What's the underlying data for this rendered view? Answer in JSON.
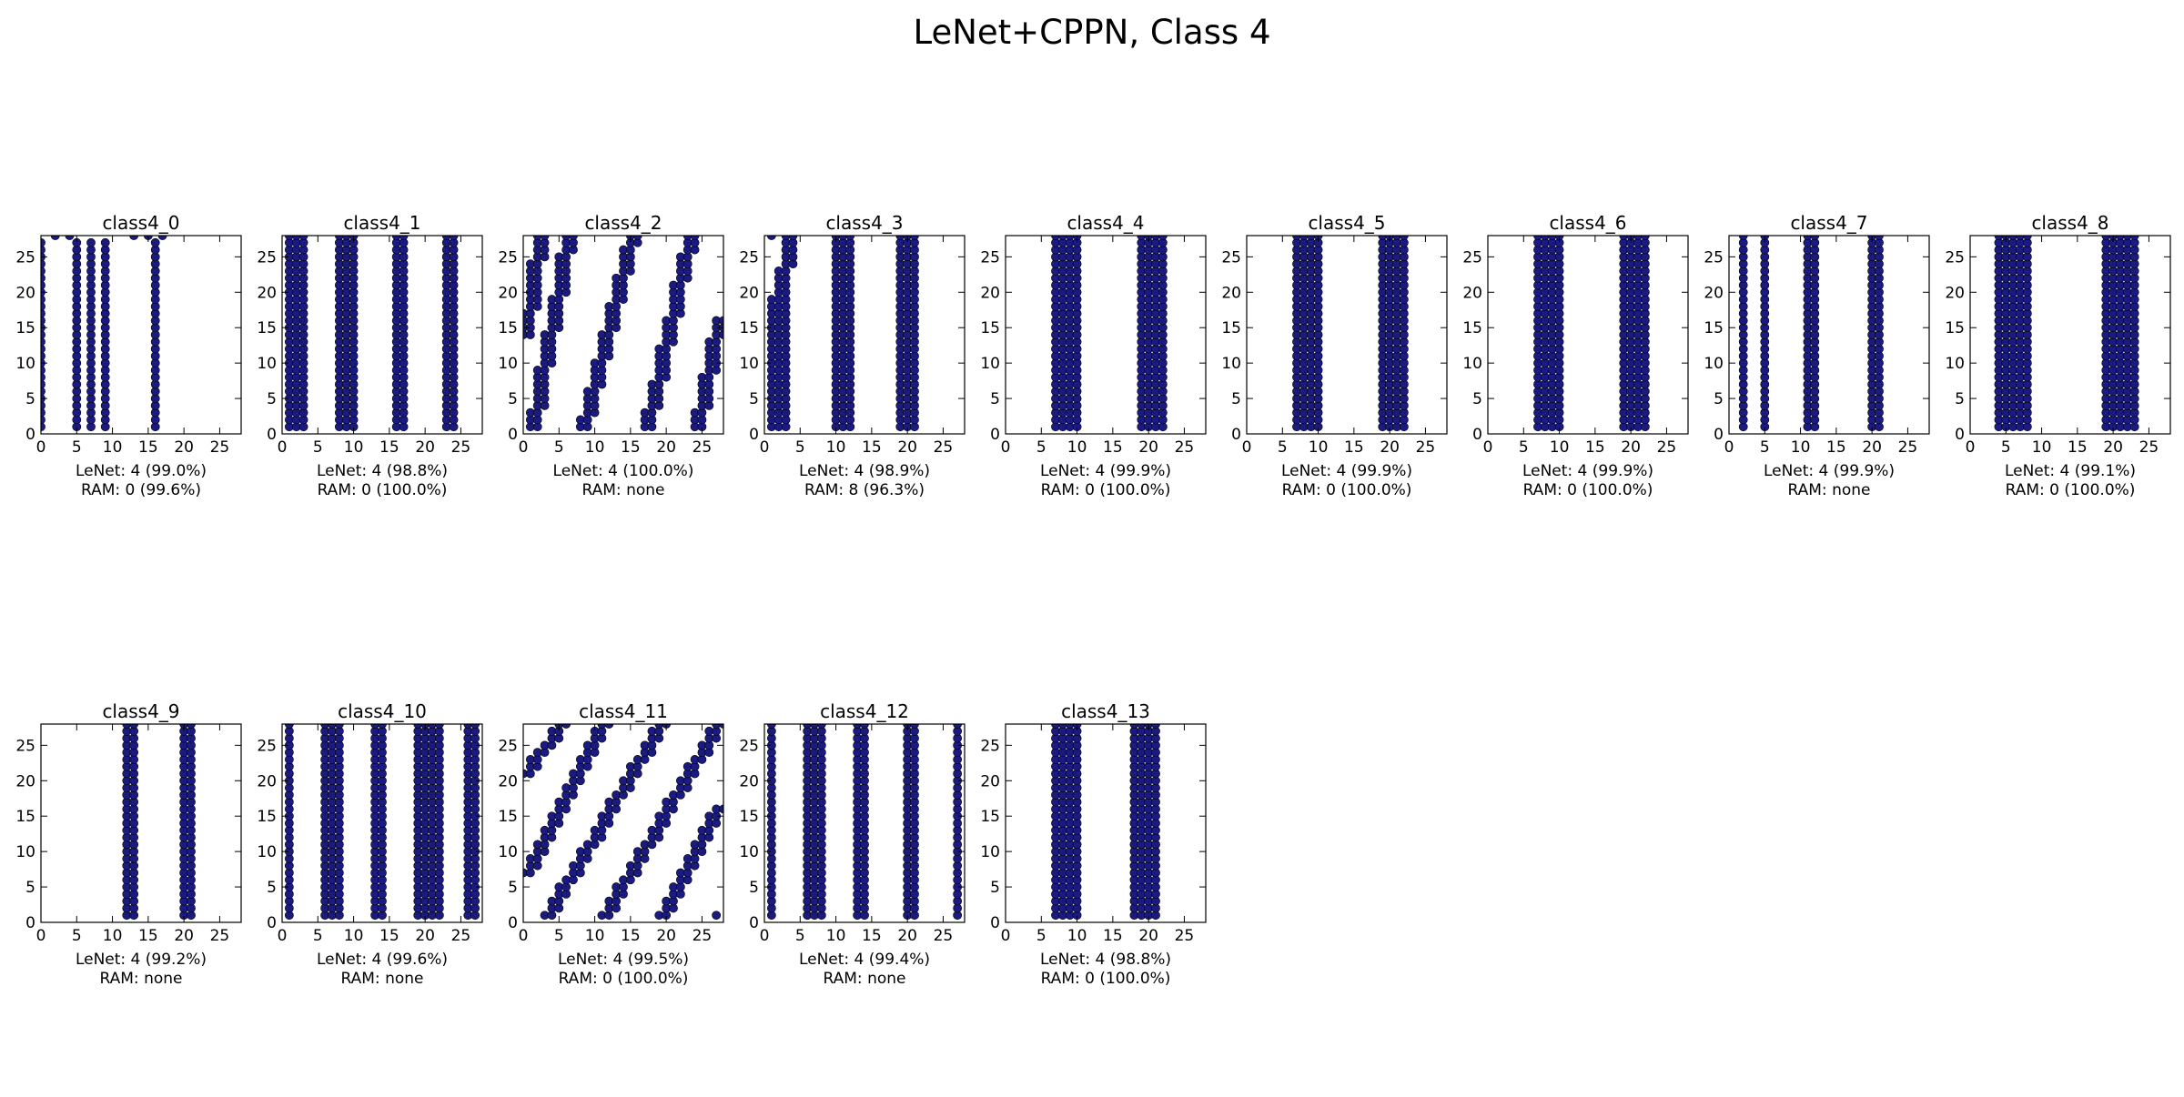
{
  "figure": {
    "title": "LeNet+CPPN, Class 4"
  },
  "chart_data": [
    {
      "type": "scatter",
      "title": "class4_0",
      "caption": [
        "LeNet: 4 (99.0%)",
        "RAM: 0 (99.6%)"
      ],
      "xlim": [
        0,
        28
      ],
      "ylim": [
        0,
        28
      ],
      "xticks": [
        0,
        5,
        10,
        15,
        20,
        25
      ],
      "yticks": [
        0,
        5,
        10,
        15,
        20,
        25
      ],
      "marker_color": "#1a1a80",
      "columns": [
        {
          "x": 0,
          "y0": 1,
          "y1": 27
        },
        {
          "x": 5,
          "y0": 1,
          "y1": 27
        },
        {
          "x": 7,
          "y0": 1,
          "y1": 27
        },
        {
          "x": 9,
          "y0": 1,
          "y1": 27
        },
        {
          "x": 16,
          "y0": 1,
          "y1": 27
        }
      ],
      "points": [
        [
          2,
          28
        ],
        [
          4,
          28
        ],
        [
          13,
          28
        ],
        [
          15,
          28
        ],
        [
          17,
          28
        ]
      ]
    },
    {
      "type": "scatter",
      "title": "class4_1",
      "caption": [
        "LeNet: 4 (98.8%)",
        "RAM: 0 (100.0%)"
      ],
      "xlim": [
        0,
        28
      ],
      "ylim": [
        0,
        28
      ],
      "xticks": [
        0,
        5,
        10,
        15,
        20,
        25
      ],
      "yticks": [
        0,
        5,
        10,
        15,
        20,
        25
      ],
      "marker_color": "#1a1a80",
      "columns": [
        {
          "x": 1,
          "y0": 1,
          "y1": 28
        },
        {
          "x": 2,
          "y0": 1,
          "y1": 28
        },
        {
          "x": 3,
          "y0": 1,
          "y1": 28
        },
        {
          "x": 8,
          "y0": 1,
          "y1": 28
        },
        {
          "x": 9,
          "y0": 1,
          "y1": 28
        },
        {
          "x": 10,
          "y0": 1,
          "y1": 28
        },
        {
          "x": 16,
          "y0": 1,
          "y1": 28
        },
        {
          "x": 17,
          "y0": 1,
          "y1": 28
        },
        {
          "x": 23,
          "y0": 1,
          "y1": 28
        },
        {
          "x": 24,
          "y0": 1,
          "y1": 28
        }
      ],
      "points": []
    },
    {
      "type": "scatter",
      "title": "class4_2",
      "caption": [
        "LeNet: 4 (100.0%)",
        "RAM: none"
      ],
      "xlim": [
        0,
        28
      ],
      "ylim": [
        0,
        28
      ],
      "xticks": [
        0,
        5,
        10,
        15,
        20,
        25
      ],
      "yticks": [
        0,
        5,
        10,
        15,
        20,
        25
      ],
      "marker_color": "#1a1a80",
      "columns": [],
      "stripes": [
        {
          "x0": 1,
          "x1": 6,
          "y0": 1,
          "y1": 28
        },
        {
          "x0": 8,
          "x1": 15,
          "y0": 1,
          "y1": 28
        },
        {
          "x0": 17,
          "x1": 23,
          "y0": 1,
          "y1": 28
        },
        {
          "x0": 24,
          "x1": 27,
          "y0": 1,
          "y1": 16
        },
        {
          "x0": 0,
          "x1": 2,
          "y0": 14,
          "y1": 28
        }
      ],
      "points": []
    },
    {
      "type": "scatter",
      "title": "class4_3",
      "caption": [
        "LeNet: 4 (98.9%)",
        "RAM: 8 (96.3%)"
      ],
      "xlim": [
        0,
        28
      ],
      "ylim": [
        0,
        28
      ],
      "xticks": [
        0,
        5,
        10,
        15,
        20,
        25
      ],
      "yticks": [
        0,
        5,
        10,
        15,
        20,
        25
      ],
      "marker_color": "#1a1a80",
      "columns": [
        {
          "x": 1,
          "y0": 1,
          "y1": 19
        },
        {
          "x": 2,
          "y0": 1,
          "y1": 23
        },
        {
          "x": 3,
          "y0": 1,
          "y1": 28
        },
        {
          "x": 4,
          "y0": 24,
          "y1": 28
        },
        {
          "x": 10,
          "y0": 1,
          "y1": 28
        },
        {
          "x": 11,
          "y0": 1,
          "y1": 28
        },
        {
          "x": 12,
          "y0": 1,
          "y1": 28
        },
        {
          "x": 19,
          "y0": 1,
          "y1": 28
        },
        {
          "x": 20,
          "y0": 1,
          "y1": 28
        },
        {
          "x": 21,
          "y0": 1,
          "y1": 28
        }
      ],
      "points": [
        [
          1,
          28
        ]
      ]
    },
    {
      "type": "scatter",
      "title": "class4_4",
      "caption": [
        "LeNet: 4 (99.9%)",
        "RAM: 0 (100.0%)"
      ],
      "xlim": [
        0,
        28
      ],
      "ylim": [
        0,
        28
      ],
      "xticks": [
        0,
        5,
        10,
        15,
        20,
        25
      ],
      "yticks": [
        0,
        5,
        10,
        15,
        20,
        25
      ],
      "marker_color": "#1a1a80",
      "columns": [
        {
          "x": 7,
          "y0": 1,
          "y1": 28
        },
        {
          "x": 8,
          "y0": 1,
          "y1": 28
        },
        {
          "x": 9,
          "y0": 1,
          "y1": 28
        },
        {
          "x": 10,
          "y0": 1,
          "y1": 28
        },
        {
          "x": 19,
          "y0": 1,
          "y1": 28
        },
        {
          "x": 20,
          "y0": 1,
          "y1": 28
        },
        {
          "x": 21,
          "y0": 1,
          "y1": 28
        },
        {
          "x": 22,
          "y0": 1,
          "y1": 28
        }
      ],
      "points": []
    },
    {
      "type": "scatter",
      "title": "class4_5",
      "caption": [
        "LeNet: 4 (99.9%)",
        "RAM: 0 (100.0%)"
      ],
      "xlim": [
        0,
        28
      ],
      "ylim": [
        0,
        28
      ],
      "xticks": [
        0,
        5,
        10,
        15,
        20,
        25
      ],
      "yticks": [
        0,
        5,
        10,
        15,
        20,
        25
      ],
      "marker_color": "#1a1a80",
      "columns": [
        {
          "x": 7,
          "y0": 1,
          "y1": 28
        },
        {
          "x": 8,
          "y0": 1,
          "y1": 28
        },
        {
          "x": 9,
          "y0": 1,
          "y1": 28
        },
        {
          "x": 10,
          "y0": 1,
          "y1": 28
        },
        {
          "x": 19,
          "y0": 1,
          "y1": 28
        },
        {
          "x": 20,
          "y0": 1,
          "y1": 28
        },
        {
          "x": 21,
          "y0": 1,
          "y1": 28
        },
        {
          "x": 22,
          "y0": 1,
          "y1": 28
        }
      ],
      "points": []
    },
    {
      "type": "scatter",
      "title": "class4_6",
      "caption": [
        "LeNet: 4 (99.9%)",
        "RAM: 0 (100.0%)"
      ],
      "xlim": [
        0,
        28
      ],
      "ylim": [
        0,
        28
      ],
      "xticks": [
        0,
        5,
        10,
        15,
        20,
        25
      ],
      "yticks": [
        0,
        5,
        10,
        15,
        20,
        25
      ],
      "marker_color": "#1a1a80",
      "columns": [
        {
          "x": 7,
          "y0": 1,
          "y1": 28
        },
        {
          "x": 8,
          "y0": 1,
          "y1": 28
        },
        {
          "x": 9,
          "y0": 1,
          "y1": 28
        },
        {
          "x": 10,
          "y0": 1,
          "y1": 28
        },
        {
          "x": 19,
          "y0": 1,
          "y1": 28
        },
        {
          "x": 20,
          "y0": 1,
          "y1": 28
        },
        {
          "x": 21,
          "y0": 1,
          "y1": 28
        },
        {
          "x": 22,
          "y0": 1,
          "y1": 28
        }
      ],
      "points": []
    },
    {
      "type": "scatter",
      "title": "class4_7",
      "caption": [
        "LeNet: 4 (99.9%)",
        "RAM: none"
      ],
      "xlim": [
        0,
        28
      ],
      "ylim": [
        0,
        28
      ],
      "xticks": [
        0,
        5,
        10,
        15,
        20,
        25
      ],
      "yticks": [
        0,
        5,
        10,
        15,
        20,
        25
      ],
      "marker_color": "#1a1a80",
      "columns": [
        {
          "x": 2,
          "y0": 1,
          "y1": 28
        },
        {
          "x": 5,
          "y0": 1,
          "y1": 28
        },
        {
          "x": 11,
          "y0": 1,
          "y1": 28
        },
        {
          "x": 12,
          "y0": 1,
          "y1": 28
        },
        {
          "x": 20,
          "y0": 1,
          "y1": 28
        },
        {
          "x": 21,
          "y0": 1,
          "y1": 28
        }
      ],
      "points": []
    },
    {
      "type": "scatter",
      "title": "class4_8",
      "caption": [
        "LeNet: 4 (99.1%)",
        "RAM: 0 (100.0%)"
      ],
      "xlim": [
        0,
        28
      ],
      "ylim": [
        0,
        28
      ],
      "xticks": [
        0,
        5,
        10,
        15,
        20,
        25
      ],
      "yticks": [
        0,
        5,
        10,
        15,
        20,
        25
      ],
      "marker_color": "#1a1a80",
      "columns": [
        {
          "x": 4,
          "y0": 1,
          "y1": 28
        },
        {
          "x": 5,
          "y0": 1,
          "y1": 28
        },
        {
          "x": 6,
          "y0": 1,
          "y1": 28
        },
        {
          "x": 7,
          "y0": 1,
          "y1": 28
        },
        {
          "x": 8,
          "y0": 1,
          "y1": 28
        },
        {
          "x": 19,
          "y0": 1,
          "y1": 28
        },
        {
          "x": 20,
          "y0": 1,
          "y1": 28
        },
        {
          "x": 21,
          "y0": 1,
          "y1": 28
        },
        {
          "x": 22,
          "y0": 1,
          "y1": 28
        },
        {
          "x": 23,
          "y0": 1,
          "y1": 28
        }
      ],
      "points": []
    },
    {
      "type": "scatter",
      "title": "class4_9",
      "caption": [
        "LeNet: 4 (99.2%)",
        "RAM: none"
      ],
      "xlim": [
        0,
        28
      ],
      "ylim": [
        0,
        28
      ],
      "xticks": [
        0,
        5,
        10,
        15,
        20,
        25
      ],
      "yticks": [
        0,
        5,
        10,
        15,
        20,
        25
      ],
      "marker_color": "#1a1a80",
      "columns": [
        {
          "x": 12,
          "y0": 1,
          "y1": 28
        },
        {
          "x": 13,
          "y0": 1,
          "y1": 28
        },
        {
          "x": 20,
          "y0": 1,
          "y1": 28
        },
        {
          "x": 21,
          "y0": 1,
          "y1": 28
        }
      ],
      "points": []
    },
    {
      "type": "scatter",
      "title": "class4_10",
      "caption": [
        "LeNet: 4 (99.6%)",
        "RAM: none"
      ],
      "xlim": [
        0,
        28
      ],
      "ylim": [
        0,
        28
      ],
      "xticks": [
        0,
        5,
        10,
        15,
        20,
        25
      ],
      "yticks": [
        0,
        5,
        10,
        15,
        20,
        25
      ],
      "marker_color": "#1a1a80",
      "columns": [
        {
          "x": 1,
          "y0": 1,
          "y1": 28
        },
        {
          "x": 6,
          "y0": 1,
          "y1": 28
        },
        {
          "x": 7,
          "y0": 1,
          "y1": 28
        },
        {
          "x": 8,
          "y0": 1,
          "y1": 28
        },
        {
          "x": 13,
          "y0": 1,
          "y1": 28
        },
        {
          "x": 14,
          "y0": 1,
          "y1": 28
        },
        {
          "x": 19,
          "y0": 1,
          "y1": 28
        },
        {
          "x": 20,
          "y0": 1,
          "y1": 28
        },
        {
          "x": 21,
          "y0": 1,
          "y1": 28
        },
        {
          "x": 22,
          "y0": 1,
          "y1": 28
        },
        {
          "x": 26,
          "y0": 1,
          "y1": 28
        },
        {
          "x": 27,
          "y0": 1,
          "y1": 28
        }
      ],
      "points": []
    },
    {
      "type": "scatter",
      "title": "class4_11",
      "caption": [
        "LeNet: 4 (99.5%)",
        "RAM: 0 (100.0%)"
      ],
      "xlim": [
        0,
        28
      ],
      "ylim": [
        0,
        28
      ],
      "xticks": [
        0,
        5,
        10,
        15,
        20,
        25
      ],
      "yticks": [
        0,
        5,
        10,
        15,
        20,
        25
      ],
      "marker_color": "#1a1a80",
      "columns": [],
      "stripes": [
        {
          "x0": 0,
          "x1": 11,
          "y0": 7,
          "y1": 28
        },
        {
          "x0": 3,
          "x1": 19,
          "y0": 1,
          "y1": 28
        },
        {
          "x0": 11,
          "x1": 27,
          "y0": 1,
          "y1": 28
        },
        {
          "x0": 19,
          "x1": 27,
          "y0": 1,
          "y1": 16
        },
        {
          "x0": 0,
          "x1": 5,
          "y0": 21,
          "y1": 28
        }
      ],
      "points": [
        [
          27,
          1
        ]
      ]
    },
    {
      "type": "scatter",
      "title": "class4_12",
      "caption": [
        "LeNet: 4 (99.4%)",
        "RAM: none"
      ],
      "xlim": [
        0,
        28
      ],
      "ylim": [
        0,
        28
      ],
      "xticks": [
        0,
        5,
        10,
        15,
        20,
        25
      ],
      "yticks": [
        0,
        5,
        10,
        15,
        20,
        25
      ],
      "marker_color": "#1a1a80",
      "columns": [
        {
          "x": 1,
          "y0": 1,
          "y1": 28
        },
        {
          "x": 6,
          "y0": 1,
          "y1": 28
        },
        {
          "x": 7,
          "y0": 1,
          "y1": 28
        },
        {
          "x": 8,
          "y0": 1,
          "y1": 28
        },
        {
          "x": 13,
          "y0": 1,
          "y1": 28
        },
        {
          "x": 14,
          "y0": 1,
          "y1": 28
        },
        {
          "x": 20,
          "y0": 1,
          "y1": 28
        },
        {
          "x": 21,
          "y0": 1,
          "y1": 28
        },
        {
          "x": 27,
          "y0": 1,
          "y1": 28
        }
      ],
      "points": []
    },
    {
      "type": "scatter",
      "title": "class4_13",
      "caption": [
        "LeNet: 4 (98.8%)",
        "RAM: 0 (100.0%)"
      ],
      "xlim": [
        0,
        28
      ],
      "ylim": [
        0,
        28
      ],
      "xticks": [
        0,
        5,
        10,
        15,
        20,
        25
      ],
      "yticks": [
        0,
        5,
        10,
        15,
        20,
        25
      ],
      "marker_color": "#1a1a80",
      "columns": [
        {
          "x": 7,
          "y0": 1,
          "y1": 28
        },
        {
          "x": 8,
          "y0": 1,
          "y1": 28
        },
        {
          "x": 9,
          "y0": 1,
          "y1": 28
        },
        {
          "x": 10,
          "y0": 1,
          "y1": 28
        },
        {
          "x": 18,
          "y0": 1,
          "y1": 28
        },
        {
          "x": 19,
          "y0": 1,
          "y1": 28
        },
        {
          "x": 20,
          "y0": 1,
          "y1": 28
        },
        {
          "x": 21,
          "y0": 1,
          "y1": 28
        }
      ],
      "points": []
    }
  ]
}
